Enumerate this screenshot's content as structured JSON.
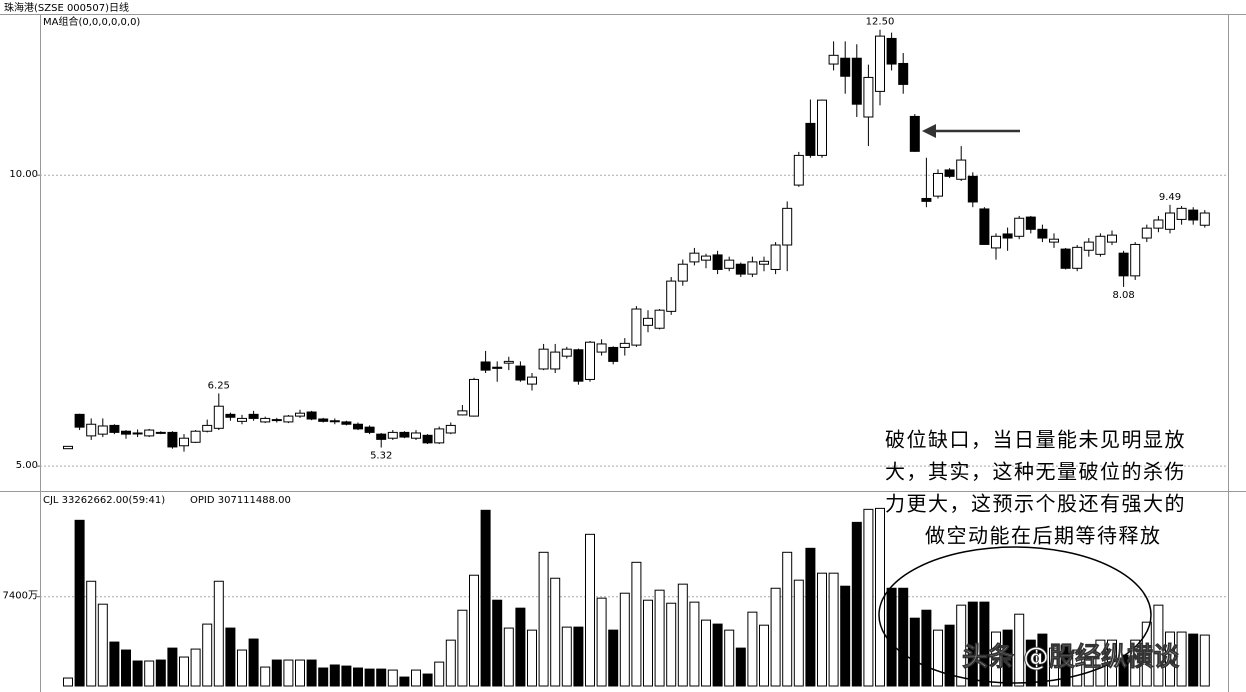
{
  "chart_data": [
    {
      "type": "candlestick",
      "title": "珠海港(SZSE 000507)日线",
      "subtitle": "MA组合(0,0,0,0,0,0)",
      "open": [
        5.3,
        5.89,
        5.52,
        5.55,
        5.7,
        5.6,
        5.57,
        5.52,
        5.58,
        5.58,
        5.35,
        5.41,
        5.6,
        5.65,
        5.89,
        5.77,
        5.89,
        5.76,
        5.8,
        5.76,
        5.86,
        5.93,
        5.81,
        5.78,
        5.76,
        5.72,
        5.67,
        5.55,
        5.48,
        5.58,
        5.48,
        5.53,
        5.4,
        5.57,
        5.88,
        5.86,
        6.79,
        6.7,
        6.77,
        6.72,
        6.41,
        6.67,
        6.67,
        6.89,
        7.0,
        6.49,
        6.96,
        7.04,
        7.04,
        7.08,
        7.42,
        7.37,
        7.66,
        8.18,
        8.51,
        8.54,
        8.63,
        8.4,
        8.47,
        8.3,
        8.47,
        8.38,
        8.8,
        9.83,
        10.89,
        10.34,
        11.91,
        12.01,
        12.01,
        11.0,
        11.44,
        12.35,
        11.92,
        11.01,
        9.6,
        9.64,
        10.09,
        9.93,
        9.98,
        9.42,
        8.75,
        8.99,
        8.95,
        9.28,
        9.07,
        8.85,
        8.73,
        8.4,
        8.71,
        8.64,
        8.85,
        8.66,
        8.27,
        8.92,
        9.09,
        9.07,
        9.24,
        9.4,
        9.14
      ],
      "high": [
        5.34,
        5.9,
        5.82,
        5.82,
        5.72,
        5.62,
        5.63,
        5.64,
        5.6,
        5.6,
        5.55,
        5.62,
        5.8,
        6.25,
        5.92,
        5.88,
        5.95,
        5.85,
        5.83,
        5.88,
        5.97,
        5.95,
        5.83,
        5.82,
        5.78,
        5.75,
        5.7,
        5.57,
        5.62,
        5.6,
        5.62,
        5.55,
        5.68,
        5.75,
        6.05,
        6.52,
        6.98,
        6.8,
        6.88,
        6.8,
        6.6,
        7.1,
        7.1,
        7.05,
        7.02,
        7.15,
        7.18,
        7.06,
        7.2,
        7.75,
        7.68,
        7.7,
        8.25,
        8.55,
        8.75,
        8.65,
        8.7,
        8.6,
        8.5,
        8.6,
        8.6,
        8.85,
        9.55,
        10.4,
        11.3,
        11.3,
        12.3,
        12.3,
        12.25,
        11.9,
        12.5,
        12.45,
        12.1,
        11.05,
        10.3,
        10.1,
        10.12,
        10.5,
        10.05,
        9.45,
        9.0,
        9.1,
        9.3,
        9.3,
        9.15,
        9.0,
        8.75,
        8.8,
        8.92,
        9.0,
        9.05,
        8.7,
        8.85,
        9.15,
        9.3,
        9.49,
        9.47,
        9.45,
        9.4
      ],
      "low": [
        5.3,
        5.62,
        5.45,
        5.5,
        5.55,
        5.47,
        5.5,
        5.5,
        5.55,
        5.3,
        5.25,
        5.4,
        5.58,
        5.62,
        5.78,
        5.72,
        5.78,
        5.74,
        5.75,
        5.74,
        5.83,
        5.79,
        5.75,
        5.72,
        5.7,
        5.62,
        5.55,
        5.32,
        5.45,
        5.48,
        5.45,
        5.38,
        5.38,
        5.55,
        5.87,
        5.85,
        6.6,
        6.45,
        6.65,
        6.45,
        6.3,
        6.65,
        6.6,
        6.85,
        6.4,
        6.45,
        6.9,
        6.75,
        6.9,
        7.05,
        7.3,
        7.35,
        7.6,
        8.1,
        8.45,
        8.4,
        8.3,
        8.35,
        8.25,
        8.25,
        8.35,
        8.3,
        8.35,
        9.8,
        10.3,
        10.3,
        11.8,
        11.4,
        11.0,
        10.5,
        11.2,
        11.8,
        11.4,
        10.4,
        9.45,
        9.6,
        9.95,
        9.9,
        9.45,
        8.8,
        8.55,
        8.7,
        8.9,
        9.0,
        8.85,
        8.75,
        8.38,
        8.35,
        8.6,
        8.6,
        8.8,
        8.08,
        8.2,
        8.85,
        9.02,
        9.0,
        9.15,
        9.15,
        9.1
      ],
      "close": [
        5.34,
        5.67,
        5.72,
        5.69,
        5.58,
        5.55,
        5.56,
        5.62,
        5.57,
        5.33,
        5.48,
        5.6,
        5.7,
        6.03,
        5.84,
        5.82,
        5.82,
        5.82,
        5.79,
        5.86,
        5.91,
        5.81,
        5.77,
        5.77,
        5.72,
        5.64,
        5.58,
        5.46,
        5.58,
        5.5,
        5.57,
        5.4,
        5.64,
        5.7,
        5.95,
        6.49,
        6.65,
        6.68,
        6.8,
        6.48,
        6.53,
        7.01,
        6.96,
        7.01,
        6.46,
        7.13,
        7.1,
        6.8,
        7.11,
        7.7,
        7.54,
        7.68,
        8.18,
        8.47,
        8.66,
        8.61,
        8.38,
        8.54,
        8.3,
        8.51,
        8.52,
        8.8,
        9.43,
        10.34,
        10.34,
        11.29,
        12.06,
        11.7,
        11.22,
        11.68,
        12.39,
        11.91,
        11.56,
        10.41,
        9.55,
        10.03,
        9.98,
        10.26,
        9.54,
        8.81,
        8.95,
        8.92,
        9.26,
        9.07,
        8.92,
        8.9,
        8.4,
        8.76,
        8.85,
        8.95,
        8.97,
        8.27,
        8.81,
        9.09,
        9.23,
        9.35,
        9.43,
        9.23,
        9.35
      ],
      "up_color": "#ffffff",
      "down_color": "#000000",
      "ylim": [
        4.59,
        12.77
      ],
      "yticks": [
        {
          "value": 5,
          "label": "5.00"
        },
        {
          "value": 10,
          "label": "10.00"
        }
      ],
      "grid": true,
      "price_labels": [
        {
          "value": 12.5,
          "label": "12.50"
        },
        {
          "value": 6.25,
          "label": "6.25"
        },
        {
          "value": 5.32,
          "label": "5.32"
        },
        {
          "value": 9.49,
          "label": "9.49"
        },
        {
          "value": 8.08,
          "label": "8.08"
        }
      ],
      "annotations": [
        "破位缺口，当日量能未见明显放",
        "大，其实，这种无量破位的杀伤",
        "力更大，这预示个股还有强大的",
        "做空动能在后期等待释放"
      ]
    },
    {
      "type": "bar",
      "title": "CJL  33262662.00(59:41)",
      "subtitle": "OPID  307111488.00",
      "values": [
        660,
        13730,
        8680,
        6780,
        3640,
        2980,
        2070,
        2070,
        2150,
        3140,
        2400,
        3060,
        5130,
        8680,
        4800,
        2980,
        3890,
        1570,
        2150,
        2150,
        2150,
        2150,
        1490,
        1740,
        1650,
        1490,
        1400,
        1400,
        1320,
        740,
        1320,
        990,
        1980,
        3800,
        6280,
        9180,
        14560,
        7110,
        4800,
        6450,
        4630,
        11080,
        8930,
        4880,
        4880,
        12570,
        7280,
        4630,
        7690,
        10250,
        7110,
        7940,
        6860,
        8440,
        6950,
        5460,
        5130,
        4630,
        3140,
        6120,
        5040,
        8100,
        11080,
        8770,
        11410,
        9350,
        9350,
        8270,
        13560,
        14640,
        14720,
        8100,
        8100,
        5620,
        6280,
        4630,
        5040,
        6700,
        6950,
        6950,
        4470,
        4630,
        5950,
        3800,
        4300,
        3140,
        3390,
        2980,
        2150,
        3800,
        3800,
        2560,
        3800,
        5290,
        6700,
        4470,
        4470,
        4300,
        4220
      ],
      "ylim": [
        0,
        15000
      ],
      "yticks": [
        {
          "value": 7400,
          "label": "7400万"
        }
      ],
      "grid": true
    }
  ],
  "watermark": "头条 @股经纵横谈"
}
